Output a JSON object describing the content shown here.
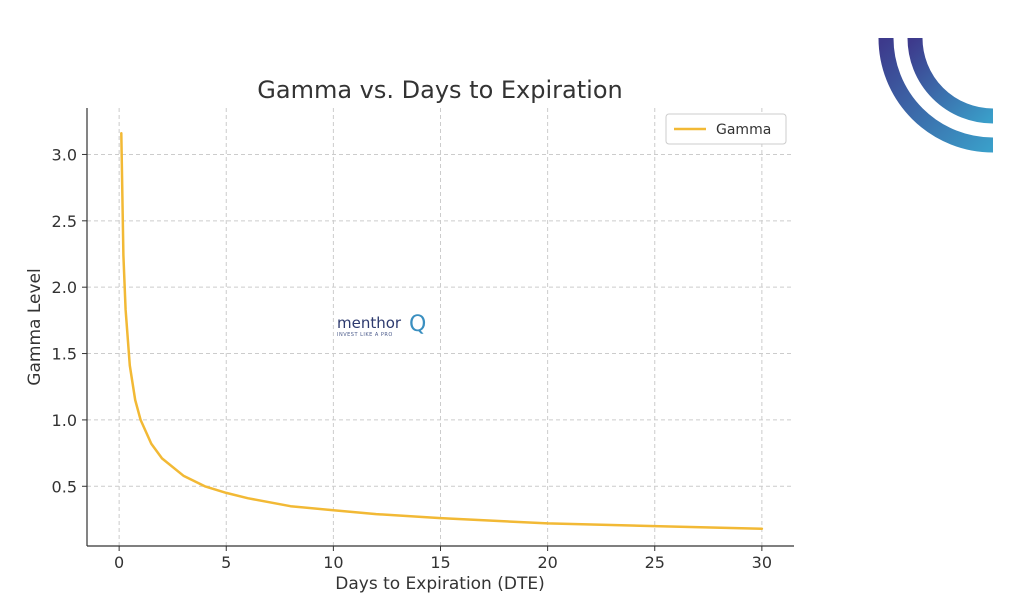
{
  "chart_data": {
    "type": "line",
    "title": "Gamma vs. Days to Expiration",
    "xlabel": "Days to Expiration (DTE)",
    "ylabel": "Gamma Level",
    "xlim": [
      -1.5,
      31.5
    ],
    "ylim": [
      0.05,
      3.35
    ],
    "x_ticks": [
      0,
      5,
      10,
      15,
      20,
      25,
      30
    ],
    "y_ticks": [
      0.5,
      1.0,
      1.5,
      2.0,
      2.5,
      3.0
    ],
    "grid": true,
    "legend_position": "top-right",
    "series": [
      {
        "name": "Gamma",
        "color": "#f2b935",
        "x": [
          0.1,
          0.2,
          0.3,
          0.5,
          0.75,
          1,
          1.5,
          2,
          3,
          4,
          5,
          6,
          8,
          10,
          12,
          15,
          20,
          25,
          30
        ],
        "y": [
          3.16,
          2.24,
          1.83,
          1.41,
          1.15,
          1.0,
          0.82,
          0.71,
          0.58,
          0.5,
          0.45,
          0.41,
          0.35,
          0.32,
          0.29,
          0.26,
          0.22,
          0.2,
          0.18
        ]
      }
    ]
  },
  "watermark": {
    "brand": "menthor",
    "letter": "Q",
    "tagline": "INVEST LIKE A PRO"
  },
  "logo": {
    "colors": [
      "#3d3a8c",
      "#3a9ec9"
    ]
  }
}
